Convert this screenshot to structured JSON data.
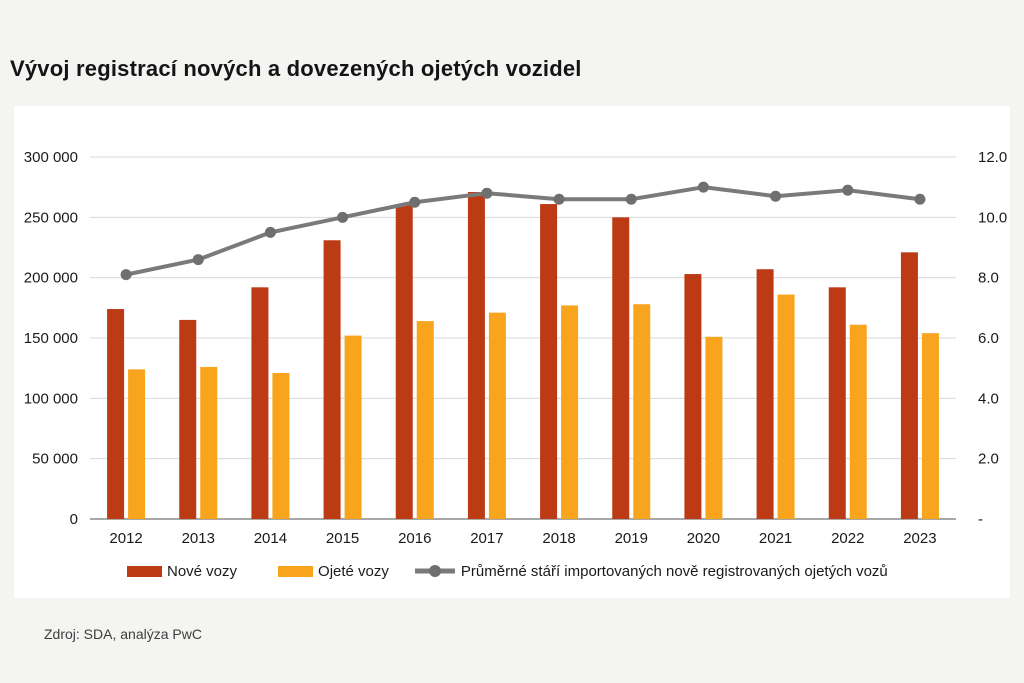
{
  "title": "Vývoj registrací nových a dovezených ojetých vozidel",
  "source": "Zdroj: SDA, analýza PwC",
  "colors": {
    "new_cars": "#bc3a14",
    "used_cars": "#f8a41c",
    "age_line": "#7a7a7a",
    "age_marker": "#6f6f6f",
    "grid": "#d9d9d9",
    "axis_line": "#a8a8a8",
    "text": "#1a1a1a",
    "panel": "#ffffff",
    "background": "#f4f4f2"
  },
  "chart_data": {
    "type": "bar",
    "title": "Vývoj registrací nových a dovezených ojetých vozidel",
    "categories": [
      "2012",
      "2013",
      "2014",
      "2015",
      "2016",
      "2017",
      "2018",
      "2019",
      "2020",
      "2021",
      "2022",
      "2023"
    ],
    "series": [
      {
        "name": "Nové vozy",
        "type": "bar",
        "axis": "left",
        "color": "#bc3a14",
        "values": [
          174000,
          165000,
          192000,
          231000,
          260000,
          271000,
          261000,
          250000,
          203000,
          207000,
          192000,
          221000
        ]
      },
      {
        "name": "Ojeté vozy",
        "type": "bar",
        "axis": "left",
        "color": "#f8a41c",
        "values": [
          124000,
          126000,
          121000,
          152000,
          164000,
          171000,
          177000,
          178000,
          151000,
          186000,
          161000,
          154000
        ]
      },
      {
        "name": "Průměrné stáří importovaných nově registrovaných ojetých vozů",
        "type": "line",
        "axis": "right",
        "color": "#7a7a7a",
        "values": [
          8.1,
          8.6,
          9.5,
          10.0,
          10.5,
          10.8,
          10.6,
          10.6,
          11.0,
          10.7,
          10.9,
          10.6
        ]
      }
    ],
    "axis_left": {
      "range": [
        0,
        300000
      ],
      "ticks": [
        "300 000",
        "250 000",
        "200 000",
        "150 000",
        "100 000",
        "50 000",
        "0"
      ]
    },
    "axis_right": {
      "range": [
        0,
        12
      ],
      "ticks": [
        "12.0",
        "10.0",
        "8.0",
        "6.0",
        "4.0",
        "2.0",
        "-"
      ]
    },
    "grid": true,
    "legend_position": "bottom",
    "xlabel": "",
    "ylabel": ""
  }
}
